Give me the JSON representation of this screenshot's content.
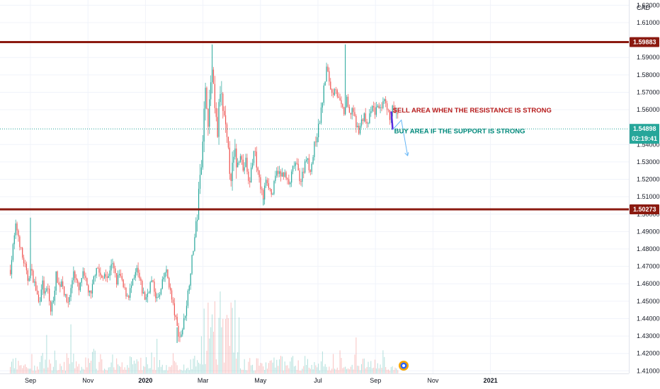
{
  "chart_data": {
    "type": "candlestick",
    "currency": "CAD",
    "y_axis_ticks": [
      "1.62000",
      "1.61000",
      "1.59000",
      "1.58000",
      "1.57000",
      "1.56000",
      "1.54000",
      "1.53000",
      "1.52000",
      "1.51000",
      "1.50000",
      "1.49000",
      "1.48000",
      "1.47000",
      "1.46000",
      "1.45000",
      "1.44000",
      "1.43000",
      "1.42000",
      "1.41000"
    ],
    "ylim": [
      1.4085,
      1.623
    ],
    "x_axis_ticks": [
      {
        "label": "Sep",
        "month_index": 0,
        "bold": false
      },
      {
        "label": "Nov",
        "month_index": 2,
        "bold": false
      },
      {
        "label": "2020",
        "month_index": 4,
        "bold": true
      },
      {
        "label": "Mar",
        "month_index": 6,
        "bold": false
      },
      {
        "label": "May",
        "month_index": 8,
        "bold": false
      },
      {
        "label": "Jul",
        "month_index": 10,
        "bold": false
      },
      {
        "label": "Sep",
        "month_index": 12,
        "bold": false
      },
      {
        "label": "Nov",
        "month_index": 14,
        "bold": false
      },
      {
        "label": "2021",
        "month_index": 16,
        "bold": true
      }
    ],
    "horizontal_levels": [
      {
        "name": "resistance",
        "value": 1.59883,
        "label": "1.59883",
        "color": "#8b1a10"
      },
      {
        "name": "support",
        "value": 1.50273,
        "label": "1.50273",
        "color": "#8b1a10"
      }
    ],
    "current_price": {
      "value": 1.54898,
      "label": "1.54898",
      "countdown": "02:19:41",
      "color": "#26a69a"
    },
    "close_path": [
      [
        -0.7,
        1.468
      ],
      [
        -0.6,
        1.482
      ],
      [
        -0.5,
        1.494
      ],
      [
        -0.4,
        1.486
      ],
      [
        -0.3,
        1.476
      ],
      [
        -0.2,
        1.471
      ],
      [
        -0.1,
        1.462
      ],
      [
        0.0,
        1.468
      ],
      [
        0.1,
        1.463
      ],
      [
        0.2,
        1.456
      ],
      [
        0.3,
        1.448
      ],
      [
        0.4,
        1.462
      ],
      [
        0.5,
        1.453
      ],
      [
        0.6,
        1.458
      ],
      [
        0.7,
        1.444
      ],
      [
        0.8,
        1.452
      ],
      [
        0.9,
        1.466
      ],
      [
        1.0,
        1.458
      ],
      [
        1.1,
        1.463
      ],
      [
        1.2,
        1.452
      ],
      [
        1.3,
        1.449
      ],
      [
        1.4,
        1.456
      ],
      [
        1.5,
        1.468
      ],
      [
        1.6,
        1.461
      ],
      [
        1.7,
        1.455
      ],
      [
        1.8,
        1.466
      ],
      [
        1.9,
        1.462
      ],
      [
        2.0,
        1.457
      ],
      [
        2.1,
        1.452
      ],
      [
        2.2,
        1.463
      ],
      [
        2.3,
        1.471
      ],
      [
        2.4,
        1.466
      ],
      [
        2.5,
        1.461
      ],
      [
        2.6,
        1.468
      ],
      [
        2.7,
        1.462
      ],
      [
        2.8,
        1.473
      ],
      [
        2.9,
        1.468
      ],
      [
        3.0,
        1.461
      ],
      [
        3.1,
        1.466
      ],
      [
        3.2,
        1.459
      ],
      [
        3.3,
        1.455
      ],
      [
        3.4,
        1.453
      ],
      [
        3.5,
        1.458
      ],
      [
        3.6,
        1.462
      ],
      [
        3.7,
        1.468
      ],
      [
        3.8,
        1.462
      ],
      [
        3.9,
        1.455
      ],
      [
        4.0,
        1.451
      ],
      [
        4.1,
        1.456
      ],
      [
        4.2,
        1.462
      ],
      [
        4.3,
        1.457
      ],
      [
        4.4,
        1.451
      ],
      [
        4.5,
        1.453
      ],
      [
        4.6,
        1.461
      ],
      [
        4.7,
        1.468
      ],
      [
        4.8,
        1.462
      ],
      [
        4.9,
        1.452
      ],
      [
        5.0,
        1.444
      ],
      [
        5.1,
        1.435
      ],
      [
        5.2,
        1.429
      ],
      [
        5.3,
        1.435
      ],
      [
        5.4,
        1.445
      ],
      [
        5.5,
        1.458
      ],
      [
        5.6,
        1.472
      ],
      [
        5.7,
        1.485
      ],
      [
        5.8,
        1.5
      ],
      [
        5.9,
        1.52
      ],
      [
        6.0,
        1.548
      ],
      [
        6.1,
        1.572
      ],
      [
        6.2,
        1.552
      ],
      [
        6.3,
        1.585
      ],
      [
        6.4,
        1.561
      ],
      [
        6.5,
        1.545
      ],
      [
        6.6,
        1.572
      ],
      [
        6.7,
        1.558
      ],
      [
        6.8,
        1.545
      ],
      [
        6.9,
        1.53
      ],
      [
        7.0,
        1.522
      ],
      [
        7.1,
        1.534
      ],
      [
        7.2,
        1.528
      ],
      [
        7.3,
        1.536
      ],
      [
        7.4,
        1.525
      ],
      [
        7.5,
        1.531
      ],
      [
        7.6,
        1.515
      ],
      [
        7.7,
        1.529
      ],
      [
        7.8,
        1.538
      ],
      [
        7.9,
        1.524
      ],
      [
        8.0,
        1.516
      ],
      [
        8.1,
        1.509
      ],
      [
        8.2,
        1.522
      ],
      [
        8.3,
        1.516
      ],
      [
        8.4,
        1.51
      ],
      [
        8.5,
        1.519
      ],
      [
        8.6,
        1.526
      ],
      [
        8.7,
        1.521
      ],
      [
        8.8,
        1.524
      ],
      [
        8.9,
        1.52
      ],
      [
        9.0,
        1.516
      ],
      [
        9.1,
        1.524
      ],
      [
        9.2,
        1.53
      ],
      [
        9.3,
        1.525
      ],
      [
        9.4,
        1.519
      ],
      [
        9.5,
        1.526
      ],
      [
        9.6,
        1.534
      ],
      [
        9.7,
        1.525
      ],
      [
        9.8,
        1.53
      ],
      [
        9.9,
        1.542
      ],
      [
        10.0,
        1.548
      ],
      [
        10.1,
        1.558
      ],
      [
        10.2,
        1.571
      ],
      [
        10.3,
        1.584
      ],
      [
        10.4,
        1.576
      ],
      [
        10.5,
        1.568
      ],
      [
        10.6,
        1.575
      ],
      [
        10.7,
        1.566
      ],
      [
        10.8,
        1.562
      ],
      [
        10.9,
        1.558
      ],
      [
        11.0,
        1.565
      ],
      [
        11.1,
        1.556
      ],
      [
        11.2,
        1.562
      ],
      [
        11.3,
        1.552
      ],
      [
        11.4,
        1.548
      ],
      [
        11.5,
        1.552
      ],
      [
        11.6,
        1.558
      ],
      [
        11.7,
        1.55
      ],
      [
        11.8,
        1.556
      ],
      [
        11.9,
        1.562
      ],
      [
        12.0,
        1.558
      ],
      [
        12.1,
        1.564
      ],
      [
        12.2,
        1.558
      ],
      [
        12.3,
        1.565
      ],
      [
        12.4,
        1.559
      ],
      [
        12.5,
        1.556
      ],
      [
        12.6,
        1.561
      ],
      [
        12.7,
        1.558
      ],
      [
        12.8,
        1.555
      ]
    ],
    "spikes": [
      {
        "month_index": 0.0,
        "value": 1.498
      },
      {
        "month_index": 6.32,
        "value": 1.5975
      },
      {
        "month_index": 10.95,
        "value": 1.5975
      },
      {
        "month_index": 5.1,
        "value": 1.426
      },
      {
        "month_index": 8.1,
        "value": 1.505
      }
    ],
    "projection_path": [
      [
        12.55,
        1.559
      ],
      [
        12.6,
        1.5485
      ],
      [
        12.9,
        1.554
      ],
      [
        13.12,
        1.5335
      ]
    ],
    "annotations": [
      {
        "name": "sell-annotation",
        "text": "SELL AREA WHEN THE RESISTANCE IS STRONG",
        "month_index": 12.6,
        "value": 1.5585,
        "color": "#b71c1c"
      },
      {
        "name": "buy-annotation",
        "text": "BUY AREA IF THE SUPPORT IS STRONG",
        "month_index": 12.65,
        "value": 1.5465,
        "color": "#00897b"
      }
    ],
    "colors": {
      "up": "#26a69a",
      "down": "#ef5350",
      "axis_text": "#131722",
      "grid": "#f0f3fa"
    }
  }
}
